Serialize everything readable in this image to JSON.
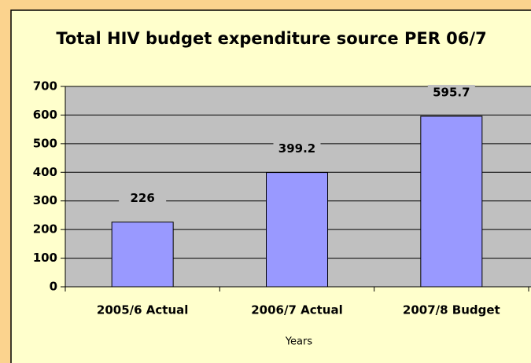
{
  "chart_data": {
    "type": "bar",
    "title": "Total HIV budget expenditure source PER 06/7",
    "x_label": "Years",
    "categories": [
      "2005/6 Actual",
      "2006/7 Actual",
      "2007/8 Budget"
    ],
    "values": [
      226,
      399.2,
      595.7
    ],
    "color": "#9999ff",
    "ylim": [
      0,
      700
    ],
    "yticks": [
      0,
      100,
      200,
      300,
      400,
      500,
      600,
      700
    ],
    "grid": true
  }
}
